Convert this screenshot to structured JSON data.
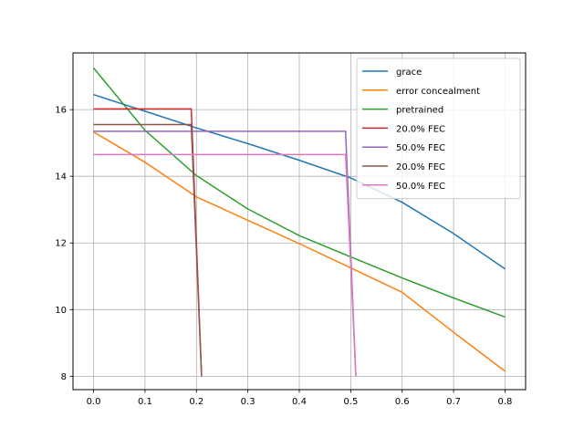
{
  "chart_data": {
    "type": "line",
    "title": "",
    "xlabel": "",
    "ylabel": "",
    "xlim": [
      -0.04,
      0.84
    ],
    "ylim": [
      7.6,
      17.7
    ],
    "grid": true,
    "legend_position": "upper-right",
    "x_ticks": [
      0.0,
      0.1,
      0.2,
      0.3,
      0.4,
      0.5,
      0.6,
      0.7,
      0.8
    ],
    "x_tick_labels": [
      "0.0",
      "0.1",
      "0.2",
      "0.3",
      "0.4",
      "0.5",
      "0.6",
      "0.7",
      "0.8"
    ],
    "y_ticks": [
      8,
      10,
      12,
      14,
      16
    ],
    "y_tick_labels": [
      "8",
      "10",
      "12",
      "14",
      "16"
    ],
    "series": [
      {
        "name": "grace",
        "color": "#1f77b4",
        "x": [
          0.0,
          0.1,
          0.2,
          0.3,
          0.4,
          0.5,
          0.6,
          0.7,
          0.8
        ],
        "y": [
          16.45,
          15.95,
          15.45,
          14.98,
          14.48,
          13.95,
          13.22,
          12.28,
          11.22
        ]
      },
      {
        "name": "error concealment",
        "color": "#ff7f0e",
        "x": [
          0.0,
          0.1,
          0.2,
          0.3,
          0.4,
          0.5,
          0.6,
          0.7,
          0.8
        ],
        "y": [
          15.33,
          14.42,
          13.38,
          12.68,
          11.98,
          11.25,
          10.52,
          9.32,
          8.15
        ]
      },
      {
        "name": "pretrained",
        "color": "#2ca02c",
        "x": [
          0.0,
          0.1,
          0.2,
          0.3,
          0.4,
          0.5,
          0.6,
          0.7,
          0.8
        ],
        "y": [
          17.25,
          15.38,
          14.02,
          13.02,
          12.22,
          11.58,
          10.95,
          10.35,
          9.78
        ]
      },
      {
        "name": "20.0% FEC",
        "color": "#d62728",
        "x": [
          0.0,
          0.19,
          0.21
        ],
        "y": [
          16.02,
          16.02,
          8.0
        ]
      },
      {
        "name": "50.0% FEC",
        "color": "#9467bd",
        "x": [
          0.0,
          0.49,
          0.51
        ],
        "y": [
          15.35,
          15.35,
          8.0
        ]
      },
      {
        "name": "20.0% FEC",
        "color": "#8c564b",
        "x": [
          0.0,
          0.19,
          0.21
        ],
        "y": [
          15.55,
          15.55,
          8.0
        ]
      },
      {
        "name": "50.0% FEC",
        "color": "#e377c2",
        "x": [
          0.0,
          0.49,
          0.51
        ],
        "y": [
          14.65,
          14.65,
          8.0
        ]
      }
    ]
  }
}
